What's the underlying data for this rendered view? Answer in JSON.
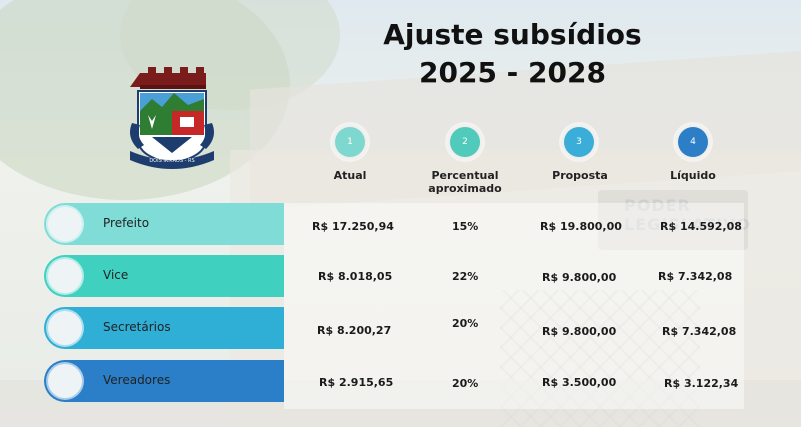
{
  "title": {
    "line1": "Ajuste subsídios",
    "line2": "2025 - 2028"
  },
  "background_sign": "PODER LEGISLATIVO",
  "logo": {
    "caption": "DOIS IRMÃOS - RS"
  },
  "steps": [
    {
      "number": "1",
      "color": "#7fd8d0"
    },
    {
      "number": "2",
      "color": "#4fcabb"
    },
    {
      "number": "3",
      "color": "#3aaed8"
    },
    {
      "number": "4",
      "color": "#2c7fc6"
    }
  ],
  "headers": {
    "atual": "Atual",
    "percentual_line1": "Percentual",
    "percentual_line2": "aproximado",
    "proposta": "Proposta",
    "liquido": "Líquido"
  },
  "rows": [
    {
      "label": "Prefeito",
      "atual": "R$ 17.250,94",
      "percentual": "15%",
      "proposta": "R$ 19.800,00",
      "liquido": "R$ 14.592,08",
      "color": "#7fdcd6"
    },
    {
      "label": "Vice",
      "atual": "R$ 8.018,05",
      "percentual": "22%",
      "proposta": "R$ 9.800,00",
      "liquido": "R$ 7.342,08",
      "color": "#3fd0c0"
    },
    {
      "label": "Secretários",
      "atual": "R$ 8.200,27",
      "percentual": "20%",
      "proposta": "R$ 9.800,00",
      "liquido": "R$ 7.342,08",
      "color": "#2faed6"
    },
    {
      "label": "Vereadores",
      "atual": "R$ 2.915,65",
      "percentual": "20%",
      "proposta": "R$ 3.500,00",
      "liquido": "R$ 3.122,34",
      "color": "#2a7fc8"
    }
  ]
}
